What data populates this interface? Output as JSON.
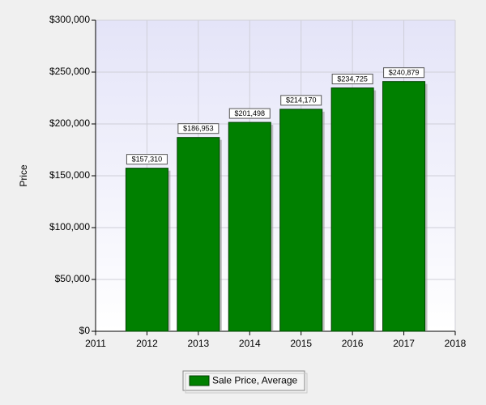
{
  "chart_data": {
    "type": "bar",
    "y_label": "Price",
    "x": [
      2012,
      2013,
      2014,
      2015,
      2016,
      2017
    ],
    "xlim": [
      2011,
      2018
    ],
    "xticks": [
      2011,
      2012,
      2013,
      2014,
      2015,
      2016,
      2017,
      2018
    ],
    "ylim": [
      0,
      300000
    ],
    "yticks": [
      {
        "value": 0,
        "label": "$0"
      },
      {
        "value": 50000,
        "label": "$50,000"
      },
      {
        "value": 100000,
        "label": "$100,000"
      },
      {
        "value": 150000,
        "label": "$150,000"
      },
      {
        "value": 200000,
        "label": "$200,000"
      },
      {
        "value": 250000,
        "label": "$250,000"
      },
      {
        "value": 300000,
        "label": "$300,000"
      }
    ],
    "grid": true,
    "series": [
      {
        "name": "Sale Price, Average",
        "color": "#008000",
        "values": [
          157310,
          186953,
          201498,
          214170,
          234725,
          240879
        ],
        "value_labels": [
          "$157,310",
          "$186,953",
          "$201,498",
          "$214,170",
          "$234,725",
          "$240,879"
        ]
      }
    ]
  }
}
